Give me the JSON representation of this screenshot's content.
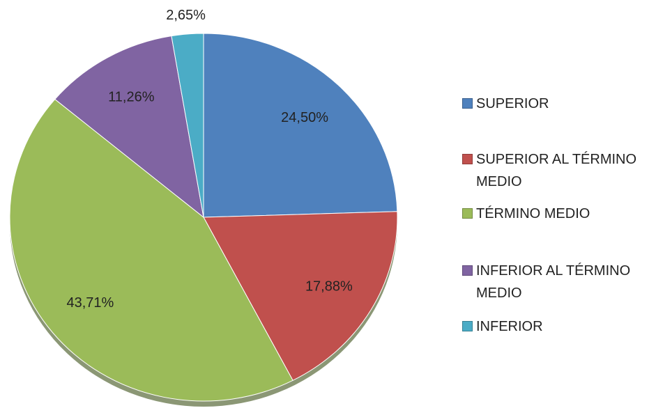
{
  "chart_data": {
    "type": "pie",
    "categories": [
      "SUPERIOR",
      "SUPERIOR AL TÉRMINO MEDIO",
      "TÉRMINO MEDIO",
      "INFERIOR AL TÉRMINO MEDIO",
      "INFERIOR"
    ],
    "values": [
      24.5,
      17.88,
      43.71,
      11.26,
      2.65
    ],
    "value_labels": [
      "24,50%",
      "17,88%",
      "43,71%",
      "11,26%",
      "2,65%"
    ],
    "colors": [
      "#4f81bd",
      "#c0504d",
      "#9bbb59",
      "#8064a2",
      "#4bacc6"
    ],
    "legend": "right"
  }
}
